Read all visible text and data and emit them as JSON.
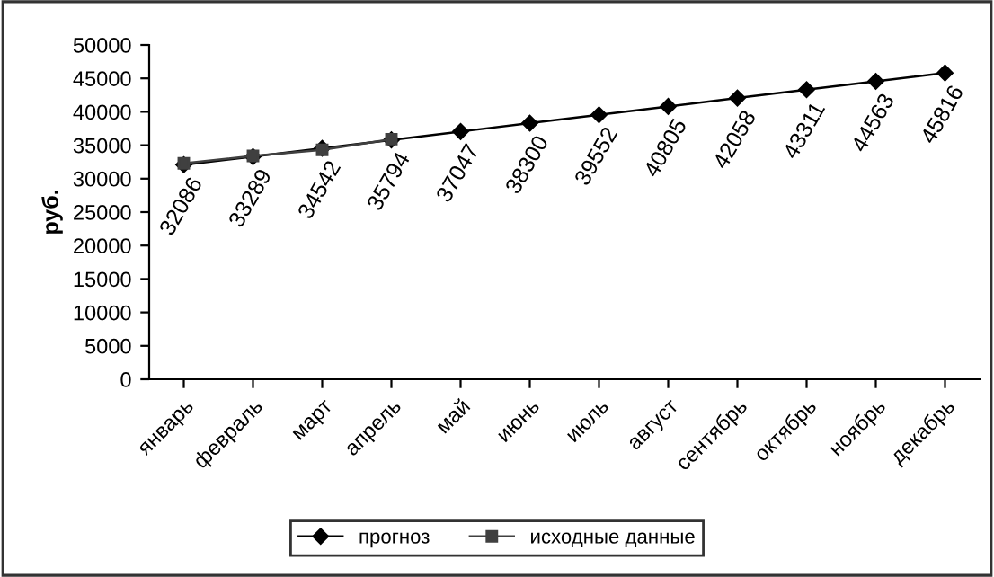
{
  "chart_data": {
    "type": "line",
    "ylabel": "руб.",
    "categories": [
      "январь",
      "февраль",
      "март",
      "апрель",
      "май",
      "июнь",
      "июль",
      "август",
      "сентябрь",
      "октябрь",
      "ноябрь",
      "декабрь"
    ],
    "series": [
      {
        "name": "прогноз",
        "color": "#000000",
        "marker": "diamond",
        "data_labels": true,
        "values": [
          32086,
          33289,
          34542,
          35794,
          37047,
          38300,
          39552,
          40805,
          42058,
          43311,
          44563,
          45816
        ]
      },
      {
        "name": "исходные данные",
        "color": "#404040",
        "marker": "square",
        "values": [
          32300,
          33400,
          34300,
          35900,
          null,
          null,
          null,
          null,
          null,
          null,
          null,
          null
        ]
      }
    ],
    "ylim": [
      0,
      50000
    ],
    "yticks": [
      0,
      5000,
      10000,
      15000,
      20000,
      25000,
      30000,
      35000,
      40000,
      45000,
      50000
    ],
    "grid": false,
    "legend": "bottom",
    "line_style": "solid"
  }
}
